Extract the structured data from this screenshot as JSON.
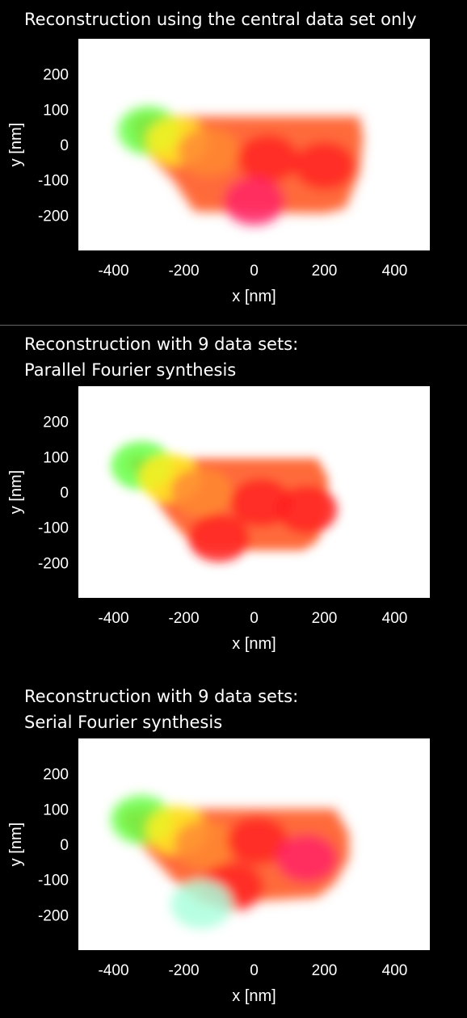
{
  "panels": [
    {
      "title_lines": [
        "Reconstruction using the central data set only"
      ],
      "chart_data": {
        "type": "heatmap",
        "title": "Reconstruction using the central data set only",
        "xlabel": "x [nm]",
        "ylabel": "y [nm]",
        "xlim": [
          -500,
          500
        ],
        "ylim": [
          -300,
          300
        ],
        "xticks": [
          -400,
          -200,
          0,
          200,
          400
        ],
        "yticks": [
          200,
          100,
          0,
          -100,
          -200
        ],
        "grid": false,
        "colormap": [
          "#ffffff",
          "#66ff44",
          "#ffee22",
          "#ff8833",
          "#ff2222",
          "#ff2266"
        ],
        "outline_nm": [
          [
            -340,
            80
          ],
          [
            -300,
            85
          ],
          [
            -200,
            80
          ],
          [
            300,
            80
          ],
          [
            310,
            20
          ],
          [
            300,
            -80
          ],
          [
            260,
            -180
          ],
          [
            200,
            -195
          ],
          [
            -170,
            -190
          ],
          [
            -230,
            -100
          ],
          [
            -330,
            0
          ],
          [
            -350,
            50
          ]
        ],
        "hotspots_nm": [
          {
            "x": -300,
            "y": 40,
            "color": "#66ff44"
          },
          {
            "x": -220,
            "y": 10,
            "color": "#ffee22"
          },
          {
            "x": -130,
            "y": -20,
            "color": "#ff8833"
          },
          {
            "x": 40,
            "y": -40,
            "color": "#ff2222"
          },
          {
            "x": 200,
            "y": -60,
            "color": "#ff2222"
          },
          {
            "x": 0,
            "y": -160,
            "color": "#ff2266"
          }
        ]
      }
    },
    {
      "title_lines": [
        "Reconstruction with 9 data sets:",
        "Parallel Fourier synthesis"
      ],
      "chart_data": {
        "type": "heatmap",
        "title": "Reconstruction with 9 data sets: Parallel Fourier synthesis",
        "xlabel": "x [nm]",
        "ylabel": "y [nm]",
        "xlim": [
          -500,
          500
        ],
        "ylim": [
          -300,
          300
        ],
        "xticks": [
          -400,
          -200,
          0,
          200,
          400
        ],
        "yticks": [
          200,
          100,
          0,
          -100,
          -200
        ],
        "grid": false,
        "colormap": [
          "#ffffff",
          "#66ff44",
          "#ffee22",
          "#ff8833",
          "#ff2222",
          "#ff2266"
        ],
        "outline_nm": [
          [
            -350,
            100
          ],
          [
            -320,
            100
          ],
          [
            -200,
            95
          ],
          [
            180,
            95
          ],
          [
            210,
            40
          ],
          [
            210,
            -60
          ],
          [
            180,
            -140
          ],
          [
            140,
            -165
          ],
          [
            -160,
            -165
          ],
          [
            -230,
            -90
          ],
          [
            -330,
            40
          ],
          [
            -360,
            80
          ]
        ],
        "hotspots_nm": [
          {
            "x": -320,
            "y": 75,
            "color": "#66ff44"
          },
          {
            "x": -240,
            "y": 40,
            "color": "#ffee22"
          },
          {
            "x": -150,
            "y": 0,
            "color": "#ff8833"
          },
          {
            "x": 20,
            "y": -30,
            "color": "#ff2222"
          },
          {
            "x": 150,
            "y": -50,
            "color": "#ff2222"
          },
          {
            "x": -100,
            "y": -130,
            "color": "#ff2222"
          }
        ]
      }
    },
    {
      "title_lines": [
        "Reconstruction with 9 data sets:",
        "Serial Fourier synthesis"
      ],
      "chart_data": {
        "type": "heatmap",
        "title": "Reconstruction with 9 data sets: Serial Fourier synthesis",
        "xlabel": "x [nm]",
        "ylabel": "y [nm]",
        "xlim": [
          -500,
          500
        ],
        "ylim": [
          -300,
          300
        ],
        "xticks": [
          -400,
          -200,
          0,
          200,
          400
        ],
        "yticks": [
          200,
          100,
          0,
          -100,
          -200
        ],
        "grid": false,
        "colormap": [
          "#ffffff",
          "#66ff44",
          "#ffee22",
          "#ff8833",
          "#ff2222",
          "#ff2266"
        ],
        "outline_nm": [
          [
            -370,
            95
          ],
          [
            -320,
            100
          ],
          [
            -200,
            100
          ],
          [
            230,
            100
          ],
          [
            270,
            30
          ],
          [
            270,
            -40
          ],
          [
            230,
            -110
          ],
          [
            180,
            -150
          ],
          [
            -150,
            -170
          ],
          [
            -230,
            -100
          ],
          [
            -350,
            30
          ],
          [
            -380,
            70
          ]
        ],
        "hotspots_nm": [
          {
            "x": -320,
            "y": 70,
            "color": "#66ff44"
          },
          {
            "x": -220,
            "y": 40,
            "color": "#ffee22"
          },
          {
            "x": -140,
            "y": 0,
            "color": "#ff8833"
          },
          {
            "x": 10,
            "y": 10,
            "color": "#ff2222"
          },
          {
            "x": 150,
            "y": -40,
            "color": "#ff2266"
          },
          {
            "x": -60,
            "y": -120,
            "color": "#ff2222"
          },
          {
            "x": -150,
            "y": -170,
            "color": "#aaffdd"
          }
        ]
      }
    }
  ]
}
